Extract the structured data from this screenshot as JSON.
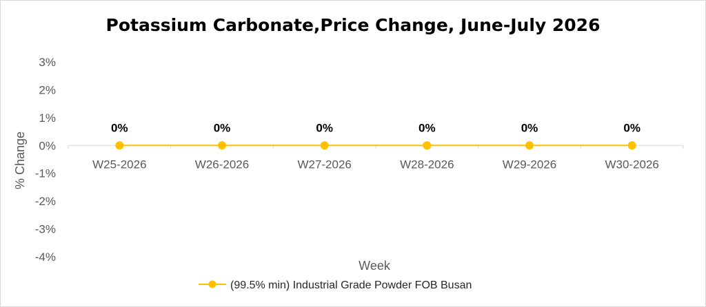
{
  "chart_data": {
    "type": "line",
    "title": "Potassium Carbonate,Price Change, June-July 2026",
    "xlabel": "Week",
    "ylabel": "% Change",
    "categories": [
      "W25-2026",
      "W26-2026",
      "W27-2026",
      "W28-2026",
      "W29-2026",
      "W30-2026"
    ],
    "series": [
      {
        "name": "(99.5% min) Industrial Grade Powder FOB Busan",
        "values": [
          0,
          0,
          0,
          0,
          0,
          0
        ],
        "data_labels": [
          "0%",
          "0%",
          "0%",
          "0%",
          "0%",
          "0%"
        ],
        "color": "#FFC000"
      }
    ],
    "ylim": [
      -4,
      3
    ],
    "yticks": [
      3,
      2,
      1,
      0,
      -1,
      -2,
      -3,
      -4
    ],
    "ytick_labels": [
      "3%",
      "2%",
      "1%",
      "0%",
      "-1%",
      "-2%",
      "-3%",
      "-4%"
    ],
    "grid": false,
    "legend": "bottom"
  }
}
